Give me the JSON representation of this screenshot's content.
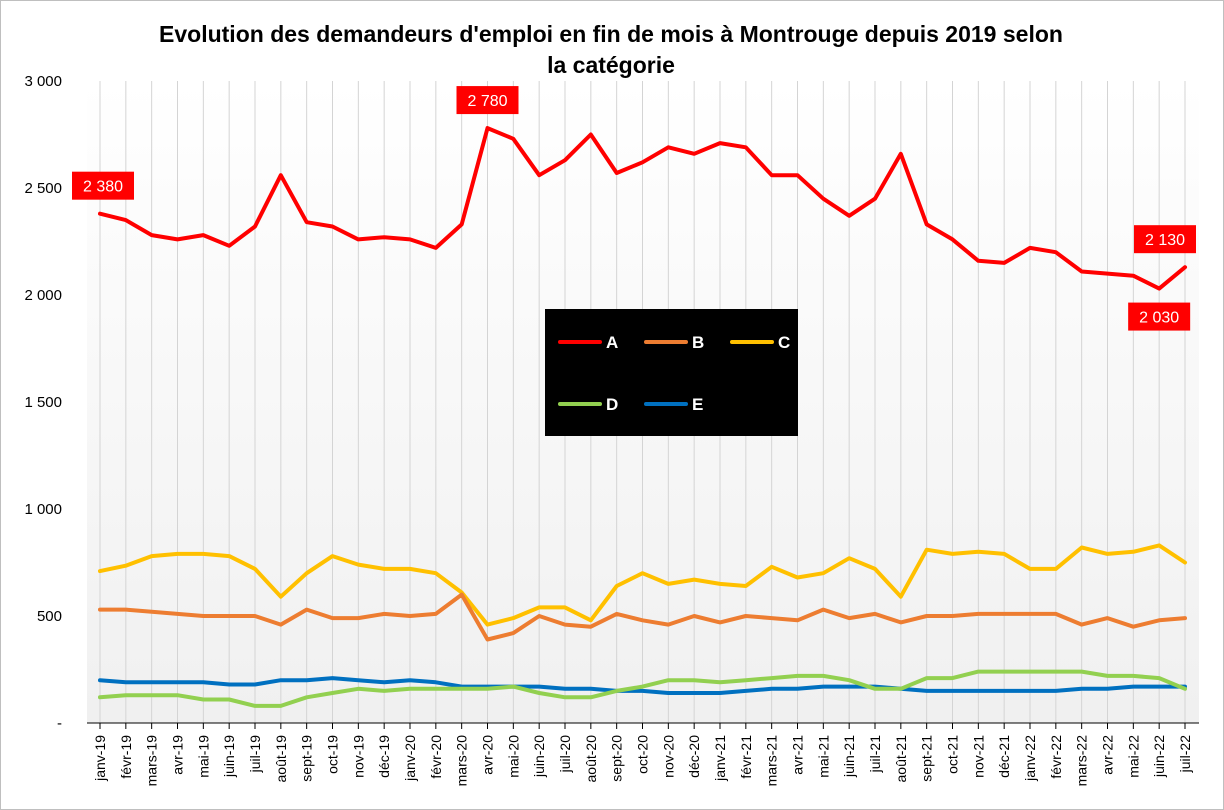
{
  "chart_data": {
    "type": "line",
    "title": "Evolution des demandeurs  d'emploi en fin de mois à Montrouge depuis 2019 selon\nla catégorie",
    "x": [
      "janv-19",
      "févr-19",
      "mars-19",
      "avr-19",
      "mai-19",
      "juin-19",
      "juil-19",
      "août-19",
      "sept-19",
      "oct-19",
      "nov-19",
      "déc-19",
      "janv-20",
      "févr-20",
      "mars-20",
      "avr-20",
      "mai-20",
      "juin-20",
      "juil-20",
      "août-20",
      "sept-20",
      "oct-20",
      "nov-20",
      "déc-20",
      "janv-21",
      "févr-21",
      "mars-21",
      "avr-21",
      "mai-21",
      "juin-21",
      "juil-21",
      "août-21",
      "sept-21",
      "oct-21",
      "nov-21",
      "déc-21",
      "janv-22",
      "févr-22",
      "mars-22",
      "avr-22",
      "mai-22",
      "juin-22",
      "juil-22"
    ],
    "yticks": [
      "-",
      "500",
      "1 000",
      "1 500",
      "2 000",
      "2 500",
      "3 000"
    ],
    "ylim": [
      0,
      3000
    ],
    "grid": "vertical",
    "legend": "center",
    "series": [
      {
        "name": "A",
        "color": "#ff0000",
        "values": [
          2380,
          2350,
          2280,
          2260,
          2280,
          2230,
          2320,
          2560,
          2340,
          2320,
          2260,
          2270,
          2260,
          2220,
          2330,
          2780,
          2730,
          2560,
          2630,
          2750,
          2570,
          2620,
          2690,
          2660,
          2710,
          2690,
          2560,
          2560,
          2450,
          2370,
          2450,
          2660,
          2330,
          2260,
          2160,
          2150,
          2220,
          2200,
          2110,
          2100,
          2090,
          2030,
          2130
        ]
      },
      {
        "name": "B",
        "color": "#ed7d31",
        "values": [
          530,
          530,
          520,
          510,
          500,
          500,
          500,
          460,
          530,
          490,
          490,
          510,
          500,
          510,
          600,
          390,
          420,
          500,
          460,
          450,
          510,
          480,
          460,
          500,
          470,
          500,
          490,
          480,
          530,
          490,
          510,
          470,
          500,
          500,
          510,
          510,
          510,
          510,
          460,
          490,
          450,
          480,
          490
        ]
      },
      {
        "name": "C",
        "color": "#ffc000",
        "values": [
          710,
          735,
          780,
          790,
          790,
          780,
          720,
          590,
          700,
          780,
          740,
          720,
          720,
          700,
          610,
          460,
          490,
          540,
          540,
          480,
          640,
          700,
          650,
          670,
          650,
          640,
          730,
          680,
          700,
          770,
          720,
          590,
          810,
          790,
          800,
          790,
          720,
          720,
          820,
          790,
          800,
          830,
          750
        ]
      },
      {
        "name": "D",
        "color": "#92d050",
        "values": [
          120,
          130,
          130,
          130,
          110,
          110,
          80,
          80,
          120,
          140,
          160,
          150,
          160,
          160,
          160,
          160,
          170,
          140,
          120,
          120,
          150,
          170,
          200,
          200,
          190,
          200,
          210,
          220,
          220,
          200,
          160,
          160,
          210,
          210,
          240,
          240,
          240,
          240,
          240,
          220,
          220,
          210,
          160
        ]
      },
      {
        "name": "E",
        "color": "#0070c0",
        "values": [
          200,
          190,
          190,
          190,
          190,
          180,
          180,
          200,
          200,
          210,
          200,
          190,
          200,
          190,
          170,
          170,
          170,
          170,
          160,
          160,
          150,
          150,
          140,
          140,
          140,
          150,
          160,
          160,
          170,
          170,
          170,
          160,
          150,
          150,
          150,
          150,
          150,
          150,
          160,
          160,
          170,
          170,
          170
        ]
      }
    ],
    "annotations": [
      {
        "series": "A",
        "index": 0,
        "text": "2 380",
        "position": "above"
      },
      {
        "series": "A",
        "index": 15,
        "text": "2 780",
        "position": "above"
      },
      {
        "series": "A",
        "index": 41,
        "text": "2 030",
        "position": "below"
      },
      {
        "series": "A",
        "index": 42,
        "text": "2 130",
        "position": "above"
      }
    ]
  }
}
